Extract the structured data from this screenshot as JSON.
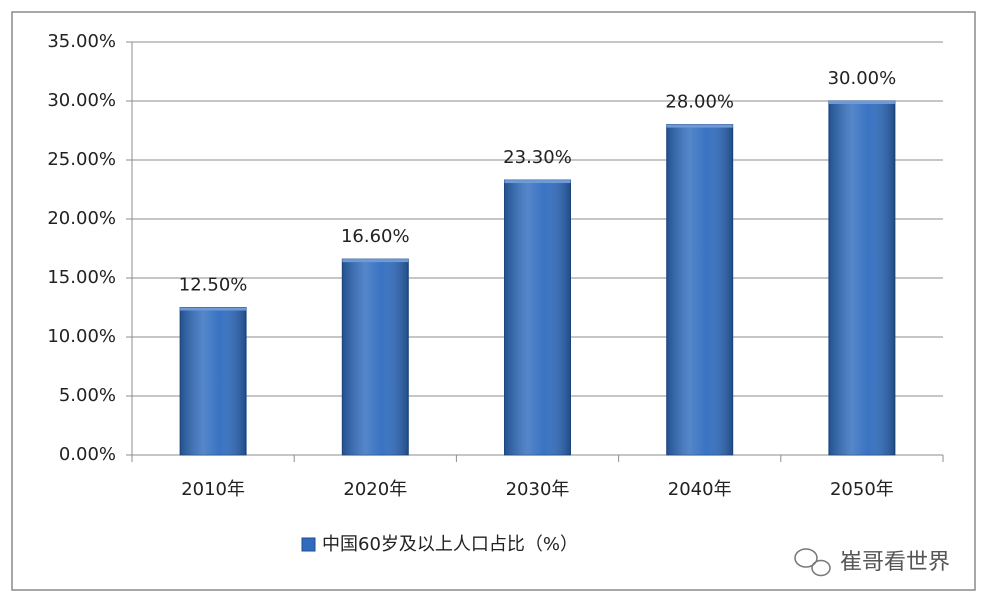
{
  "chart_data": {
    "type": "bar",
    "categories": [
      "2010年",
      "2020年",
      "2030年",
      "2040年",
      "2050年"
    ],
    "series": [
      {
        "name": "中国60岁及以上人口占比（%）",
        "color": "#2f6cbf",
        "values": [
          12.5,
          16.6,
          23.3,
          28,
          30
        ],
        "value_labels": [
          "12.50%",
          "16.60%",
          "23.30%",
          "28.00%",
          "30.00%"
        ]
      }
    ],
    "ylim": [
      0,
      35
    ],
    "yticks": [
      {
        "value": 0,
        "label": "0.00%"
      },
      {
        "value": 5,
        "label": "5.00%"
      },
      {
        "value": 10,
        "label": "10.00%"
      },
      {
        "value": 15,
        "label": "15.00%"
      },
      {
        "value": 20,
        "label": "20.00%"
      },
      {
        "value": 25,
        "label": "25.00%"
      },
      {
        "value": 30,
        "label": "30.00%"
      },
      {
        "value": 35,
        "label": "35.00%"
      }
    ],
    "grid": true,
    "legend": "bottom",
    "watermark": "崔哥看世界"
  }
}
